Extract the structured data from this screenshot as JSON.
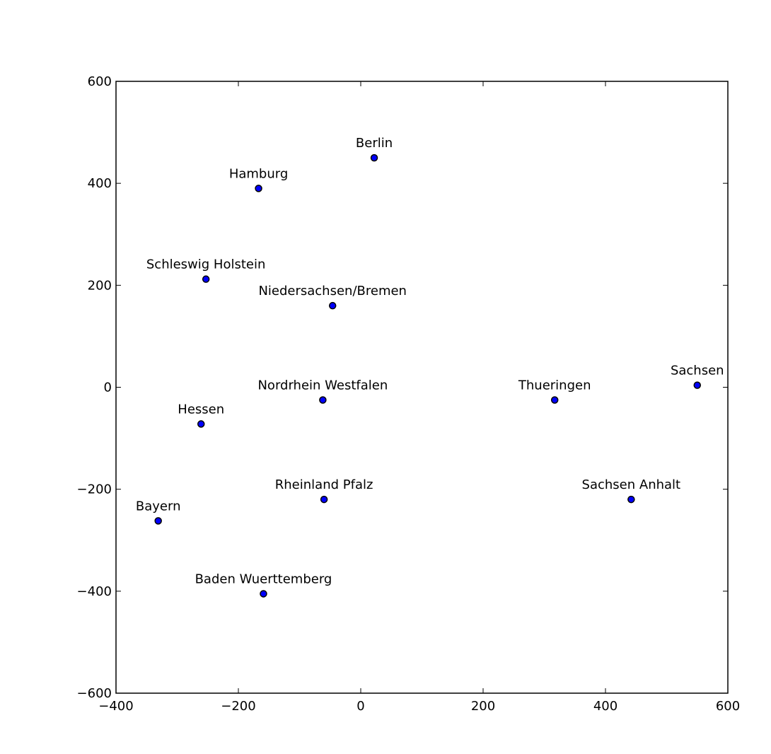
{
  "chart_data": {
    "type": "scatter",
    "title": "",
    "xlabel": "",
    "ylabel": "",
    "xlim": [
      -400,
      600
    ],
    "ylim": [
      -600,
      600
    ],
    "xticks": [
      -400,
      -200,
      0,
      200,
      400,
      600
    ],
    "yticks": [
      -600,
      -400,
      -200,
      0,
      200,
      400,
      600
    ],
    "xtick_labels": [
      "−400",
      "−200",
      "0",
      "200",
      "400",
      "600"
    ],
    "ytick_labels": [
      "−600",
      "−400",
      "−200",
      "0",
      "200",
      "400",
      "600"
    ],
    "grid": false,
    "legend": "none",
    "marker_color": "#0000ff",
    "marker_edge_color": "#000000",
    "points": [
      {
        "label": "Berlin",
        "x": 22,
        "y": 450
      },
      {
        "label": "Hamburg",
        "x": -167,
        "y": 390
      },
      {
        "label": "Schleswig Holstein",
        "x": -253,
        "y": 212
      },
      {
        "label": "Niedersachsen/Bremen",
        "x": -46,
        "y": 160
      },
      {
        "label": "Sachsen",
        "x": 550,
        "y": 4
      },
      {
        "label": "Nordrhein Westfalen",
        "x": -62,
        "y": -25
      },
      {
        "label": "Thueringen",
        "x": 317,
        "y": -25
      },
      {
        "label": "Hessen",
        "x": -261,
        "y": -72
      },
      {
        "label": "Rheinland Pfalz",
        "x": -60,
        "y": -220
      },
      {
        "label": "Sachsen Anhalt",
        "x": 442,
        "y": -220
      },
      {
        "label": "Bayern",
        "x": -331,
        "y": -262
      },
      {
        "label": "Baden Wuerttemberg",
        "x": -159,
        "y": -405
      }
    ]
  }
}
